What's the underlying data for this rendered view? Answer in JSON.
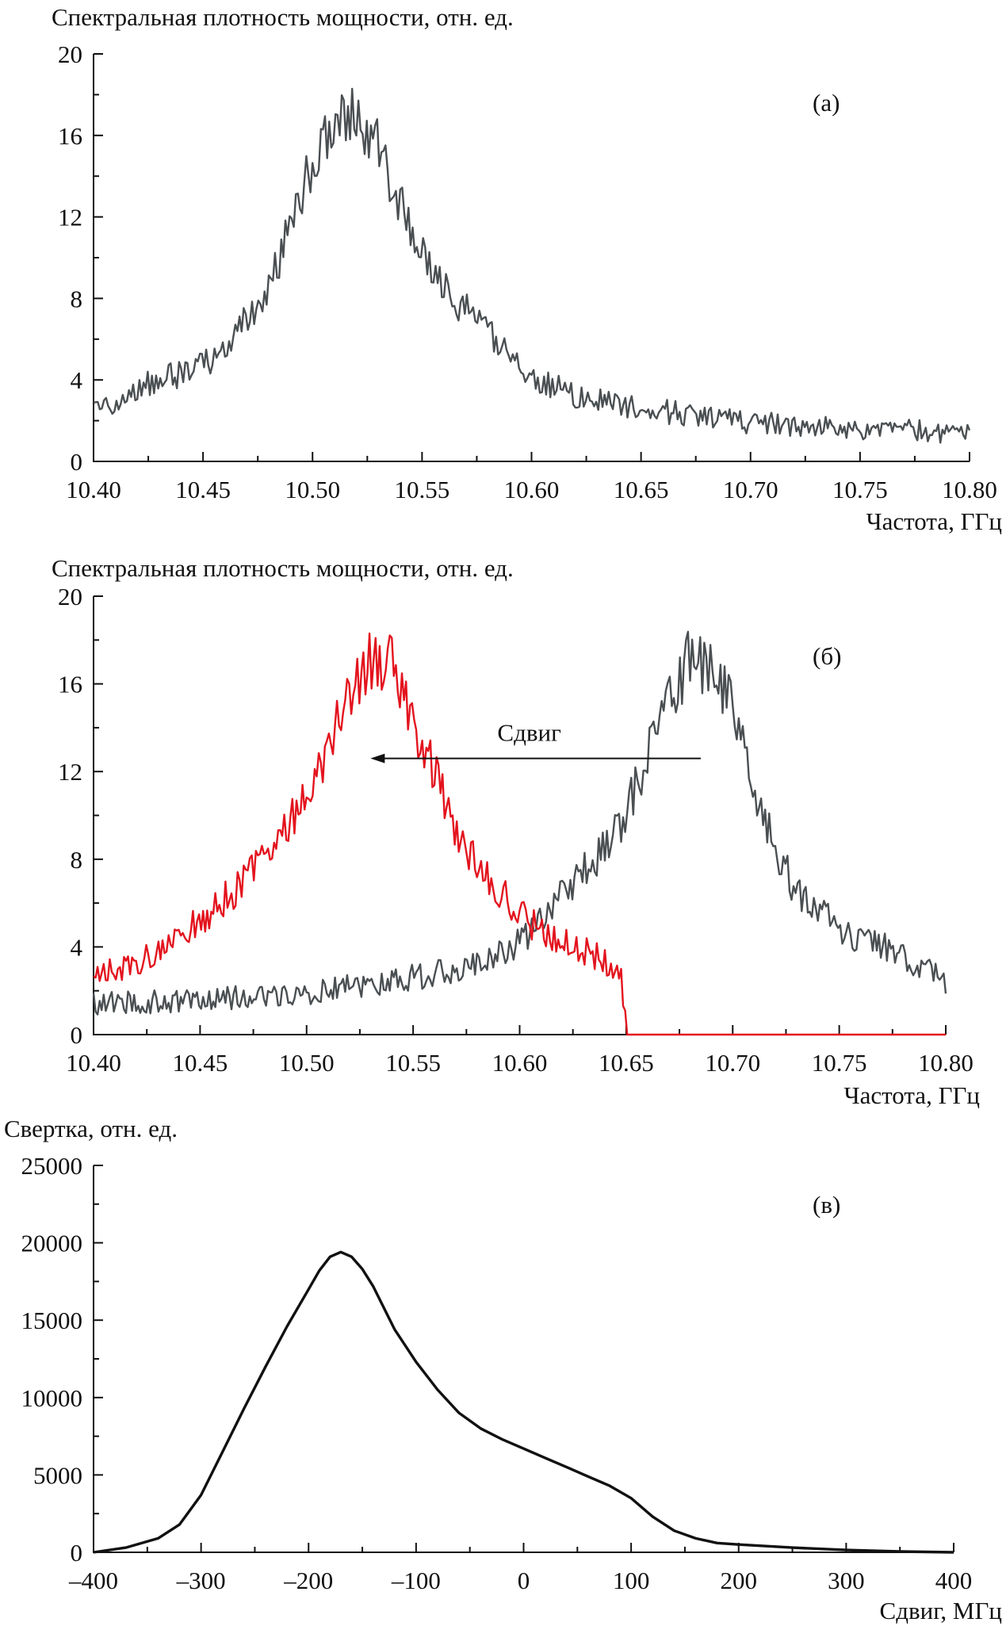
{
  "chart_data": [
    {
      "type": "line",
      "panel_label": "(а)",
      "ylabel": "Спектральная плотность мощности, отн. ед.",
      "xlabel": "Частота, ГГц",
      "xlim": [
        10.4,
        10.8
      ],
      "ylim": [
        0,
        20
      ],
      "x_ticks": [
        "10.40",
        "10.45",
        "10.50",
        "10.55",
        "10.60",
        "10.65",
        "10.70",
        "10.75",
        "10.80"
      ],
      "y_ticks": [
        "0",
        "4",
        "8",
        "12",
        "16",
        "20"
      ],
      "grid": false,
      "noisy": true,
      "series": [
        {
          "color": "#4a4f52",
          "x": [
            10.4,
            10.42,
            10.44,
            10.46,
            10.48,
            10.49,
            10.5,
            10.51,
            10.52,
            10.53,
            10.54,
            10.55,
            10.56,
            10.58,
            10.6,
            10.62,
            10.65,
            10.7,
            10.75,
            10.8
          ],
          "y": [
            2.4,
            3.6,
            4.3,
            5.4,
            8.5,
            11.5,
            14.8,
            16.8,
            17.1,
            15.5,
            12.5,
            10.2,
            8.5,
            6.3,
            4.2,
            3.2,
            2.6,
            1.9,
            1.6,
            1.4
          ]
        }
      ]
    },
    {
      "type": "line",
      "panel_label": "(б)",
      "ylabel": "Спектральная плотность мощности, отн. ед.",
      "xlabel": "Частота, ГГц",
      "xlim": [
        10.4,
        10.8
      ],
      "ylim": [
        0,
        20
      ],
      "x_ticks": [
        "10.40",
        "10.45",
        "10.50",
        "10.55",
        "10.60",
        "10.65",
        "10.70",
        "10.75",
        "10.80"
      ],
      "y_ticks": [
        "0",
        "4",
        "8",
        "12",
        "16",
        "20"
      ],
      "grid": false,
      "noisy": true,
      "annotation": {
        "text": "Сдвиг",
        "arrow_from_x": 10.685,
        "arrow_to_x": 10.53,
        "arrow_y": 12.6,
        "text_y": 13.4
      },
      "series": [
        {
          "color": "#4a4f52",
          "x": [
            10.4,
            10.45,
            10.5,
            10.55,
            10.58,
            10.6,
            10.62,
            10.64,
            10.65,
            10.66,
            10.67,
            10.68,
            10.69,
            10.7,
            10.71,
            10.72,
            10.73,
            10.75,
            10.78,
            10.8
          ],
          "y": [
            1.4,
            1.6,
            1.9,
            2.6,
            3.2,
            4.2,
            6.3,
            8.5,
            10.2,
            12.5,
            15.5,
            17.1,
            16.8,
            14.8,
            11.5,
            8.5,
            6.5,
            4.8,
            3.6,
            2.4
          ]
        },
        {
          "color": "#e3141e",
          "x": [
            10.4,
            10.42,
            10.44,
            10.46,
            10.48,
            10.5,
            10.51,
            10.52,
            10.53,
            10.54,
            10.55,
            10.56,
            10.57,
            10.58,
            10.6,
            10.62,
            10.64,
            10.648,
            10.65,
            10.8
          ],
          "y": [
            2.6,
            3.2,
            4.4,
            6.0,
            8.0,
            11.0,
            13.0,
            15.8,
            17.0,
            16.8,
            14.5,
            11.8,
            9.5,
            7.8,
            5.4,
            4.2,
            3.4,
            2.6,
            0.0,
            0.0
          ]
        }
      ]
    },
    {
      "type": "line",
      "panel_label": "(в)",
      "ylabel": "Свертка, отн. ед.",
      "xlabel": "Сдвиг, МГц",
      "xlim": [
        -400,
        400
      ],
      "ylim": [
        0,
        25000
      ],
      "x_ticks": [
        "–400",
        "–300",
        "–200",
        "–100",
        "0",
        "100",
        "200",
        "300",
        "400"
      ],
      "y_ticks": [
        "0",
        "5000",
        "10000",
        "15000",
        "20000",
        "25000"
      ],
      "grid": false,
      "noisy": false,
      "series": [
        {
          "color": "#111111",
          "x": [
            -400,
            -370,
            -340,
            -320,
            -300,
            -280,
            -260,
            -240,
            -220,
            -200,
            -190,
            -180,
            -170,
            -160,
            -150,
            -140,
            -120,
            -100,
            -80,
            -60,
            -40,
            -20,
            0,
            20,
            40,
            60,
            80,
            100,
            120,
            140,
            160,
            180,
            200,
            250,
            300,
            350,
            400
          ],
          "y": [
            0,
            300,
            900,
            1800,
            3700,
            6500,
            9300,
            12000,
            14600,
            17000,
            18200,
            19100,
            19400,
            19100,
            18300,
            17200,
            14400,
            12300,
            10500,
            9000,
            8000,
            7300,
            6700,
            6100,
            5500,
            4900,
            4300,
            3500,
            2300,
            1400,
            900,
            600,
            500,
            300,
            150,
            50,
            0
          ]
        }
      ]
    }
  ]
}
